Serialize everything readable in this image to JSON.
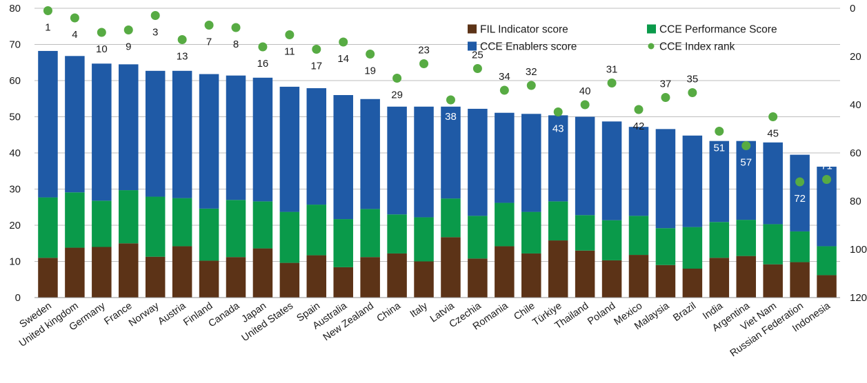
{
  "chart_data": {
    "type": "bar",
    "stacked": true,
    "title": "",
    "xlabel": "",
    "ylabel": "",
    "ylim": [
      0,
      80
    ],
    "y2lim": [
      0,
      120
    ],
    "y2_inverted": true,
    "yticks": [
      "0",
      "10",
      "20",
      "30",
      "40",
      "50",
      "60",
      "70",
      "80"
    ],
    "y2ticks": [
      "0",
      "20",
      "40",
      "60",
      "80",
      "100",
      "120"
    ],
    "grid": true,
    "legend_position": "top-right",
    "categories": [
      "Sweden",
      "United kingdom",
      "Germany",
      "France",
      "Norway",
      "Austria",
      "Finland",
      "Canada",
      "Japan",
      "United States",
      "Spain",
      "Australia",
      "New Zealand",
      "China",
      "Italy",
      "Latvia",
      "Czechia",
      "Romania",
      "Chile",
      "Türkiye",
      "Thailand",
      "Poland",
      "Mexico",
      "Malaysia",
      "Brazil",
      "India",
      "Argentina",
      "Viet Nam",
      "Russian Federation",
      "Indonesia"
    ],
    "series": [
      {
        "name": "FIL Indicator score",
        "color": "#5c3317",
        "values": [
          11.0,
          13.8,
          14.0,
          15.0,
          11.3,
          14.2,
          10.2,
          11.2,
          13.6,
          9.6,
          11.7,
          8.4,
          11.2,
          12.2,
          10.0,
          16.7,
          10.8,
          14.2,
          12.2,
          15.8,
          13.0,
          10.3,
          11.8,
          9.0,
          8.0,
          11.0,
          11.5,
          9.2,
          9.8,
          6.2
        ]
      },
      {
        "name": "CCE Performance Score",
        "color": "#0a9a4a",
        "values": [
          16.7,
          15.3,
          12.8,
          14.7,
          16.6,
          13.3,
          14.4,
          15.8,
          13.0,
          14.1,
          14.0,
          13.3,
          13.3,
          10.8,
          12.2,
          10.7,
          11.8,
          12.0,
          11.5,
          10.8,
          9.8,
          11.1,
          10.8,
          10.2,
          11.5,
          9.9,
          10.0,
          11.1,
          8.5,
          8.0
        ]
      },
      {
        "name": "CCE Enablers score",
        "color": "#1f5aa6",
        "values": [
          40.5,
          37.7,
          37.9,
          34.8,
          34.8,
          35.2,
          37.2,
          34.4,
          34.2,
          34.6,
          32.2,
          34.3,
          30.4,
          29.8,
          30.6,
          25.4,
          29.6,
          24.9,
          27.1,
          23.8,
          27.2,
          27.3,
          24.6,
          27.4,
          25.3,
          22.4,
          21.8,
          22.6,
          21.2,
          22.0
        ]
      }
    ],
    "rank_series": {
      "name": "CCE Index rank",
      "color": "#57ab43",
      "axis": "right",
      "values": [
        1,
        4,
        10,
        9,
        3,
        13,
        7,
        8,
        16,
        11,
        17,
        14,
        19,
        29,
        23,
        38,
        25,
        34,
        32,
        43,
        40,
        31,
        42,
        37,
        35,
        51,
        57,
        45,
        72,
        71
      ],
      "label_below": [
        true,
        true,
        true,
        true,
        true,
        true,
        true,
        true,
        true,
        true,
        true,
        true,
        true,
        true,
        false,
        true,
        false,
        false,
        false,
        true,
        false,
        false,
        true,
        false,
        false,
        true,
        true,
        true,
        true,
        false
      ],
      "label_white": [
        false,
        false,
        false,
        false,
        false,
        false,
        false,
        false,
        false,
        false,
        false,
        false,
        false,
        false,
        false,
        true,
        false,
        false,
        false,
        true,
        false,
        false,
        false,
        false,
        false,
        true,
        true,
        false,
        true,
        true
      ]
    }
  },
  "legend": [
    {
      "label": "FIL Indicator score",
      "color": "#5c3317",
      "shape": "square"
    },
    {
      "label": "CCE Performance Score",
      "color": "#0a9a4a",
      "shape": "square"
    },
    {
      "label": "CCE Enablers score",
      "color": "#1f5aa6",
      "shape": "square"
    },
    {
      "label": "CCE Index rank",
      "color": "#57ab43",
      "shape": "dot"
    }
  ]
}
